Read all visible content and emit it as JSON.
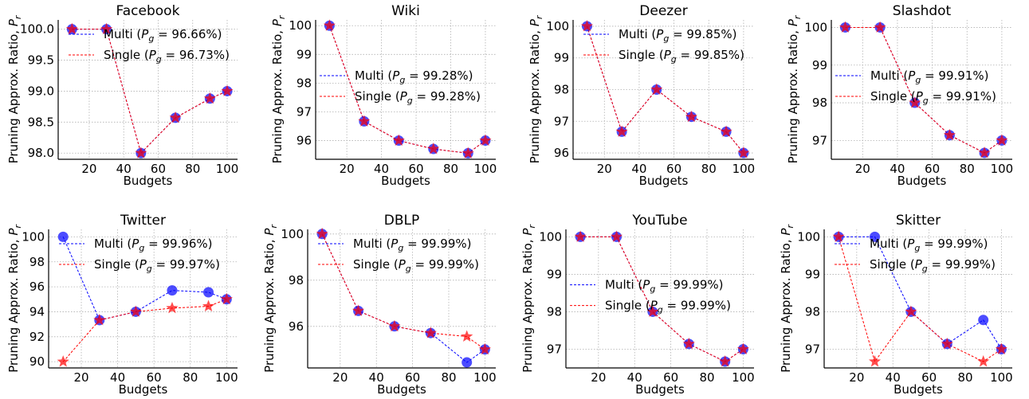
{
  "chart_data": [
    {
      "type": "line",
      "title": "Facebook",
      "xlabel": "Budgets",
      "ylabel": "Pruning Approx. Ratio, P_r",
      "x": [
        10,
        30,
        50,
        70,
        90,
        100
      ],
      "xlim": [
        2,
        106
      ],
      "ylim": [
        97.9,
        100.15
      ],
      "xticks": [
        20,
        40,
        60,
        80,
        100
      ],
      "yticks": [
        98.0,
        98.5,
        99.0,
        99.5,
        100.0
      ],
      "ytick_decimals": 1,
      "legend": "upper-center",
      "series": [
        {
          "name": "Multi",
          "pg": "96.66%",
          "values": [
            100.0,
            100.0,
            98.0,
            98.57,
            98.88,
            99.0
          ],
          "color": "#0000ff"
        },
        {
          "name": "Single",
          "pg": "96.73%",
          "values": [
            100.0,
            100.0,
            98.0,
            98.57,
            98.88,
            99.0
          ],
          "color": "#ff0000"
        }
      ]
    },
    {
      "type": "line",
      "title": "Wiki",
      "xlabel": "Budgets",
      "ylabel": "Pruning Approx. Ratio, P_r",
      "x": [
        10,
        30,
        50,
        70,
        90,
        100
      ],
      "xlim": [
        2,
        106
      ],
      "ylim": [
        95.35,
        100.2
      ],
      "xticks": [
        20,
        40,
        60,
        80,
        100
      ],
      "yticks": [
        96,
        97,
        98,
        99,
        100
      ],
      "ytick_decimals": 0,
      "legend": "center",
      "series": [
        {
          "name": "Multi",
          "pg": "99.28%",
          "values": [
            100.0,
            96.67,
            96.0,
            95.71,
            95.56,
            96.0
          ],
          "color": "#0000ff"
        },
        {
          "name": "Single",
          "pg": "99.28%",
          "values": [
            100.0,
            96.67,
            96.0,
            95.71,
            95.56,
            96.0
          ],
          "color": "#ff0000"
        }
      ]
    },
    {
      "type": "line",
      "title": "Deezer",
      "xlabel": "Budgets",
      "ylabel": "Pruning Approx. Ratio, P_r",
      "x": [
        10,
        30,
        50,
        70,
        90,
        100
      ],
      "xlim": [
        2,
        106
      ],
      "ylim": [
        95.8,
        100.2
      ],
      "xticks": [
        20,
        40,
        60,
        80,
        100
      ],
      "yticks": [
        96,
        97,
        98,
        99,
        100
      ],
      "ytick_decimals": 0,
      "legend": "upper-center",
      "series": [
        {
          "name": "Multi",
          "pg": "99.85%",
          "values": [
            100.0,
            96.67,
            98.0,
            97.14,
            96.67,
            96.0
          ],
          "color": "#0000ff"
        },
        {
          "name": "Single",
          "pg": "99.85%",
          "values": [
            100.0,
            96.67,
            98.0,
            97.14,
            96.67,
            96.0
          ],
          "color": "#ff0000"
        }
      ]
    },
    {
      "type": "line",
      "title": "Slashdot",
      "xlabel": "Budgets",
      "ylabel": "Pruning Approx. Ratio, P_r",
      "x": [
        10,
        30,
        50,
        70,
        90,
        100
      ],
      "xlim": [
        2,
        106
      ],
      "ylim": [
        96.5,
        100.2
      ],
      "xticks": [
        20,
        40,
        60,
        80,
        100
      ],
      "yticks": [
        97,
        98,
        99,
        100
      ],
      "ytick_decimals": 0,
      "legend": "center",
      "series": [
        {
          "name": "Multi",
          "pg": "99.91%",
          "values": [
            100.0,
            100.0,
            98.0,
            97.14,
            96.67,
            97.0
          ],
          "color": "#0000ff"
        },
        {
          "name": "Single",
          "pg": "99.91%",
          "values": [
            100.0,
            100.0,
            98.0,
            97.14,
            96.67,
            97.0
          ],
          "color": "#ff0000"
        }
      ]
    },
    {
      "type": "line",
      "title": "Twitter",
      "xlabel": "Budgets",
      "ylabel": "Pruning Approx. Ratio, P_r",
      "x": [
        10,
        30,
        50,
        70,
        90,
        100
      ],
      "xlim": [
        2,
        106
      ],
      "ylim": [
        89.5,
        100.6
      ],
      "xticks": [
        20,
        40,
        60,
        80,
        100
      ],
      "yticks": [
        90,
        92,
        94,
        96,
        98,
        100
      ],
      "ytick_decimals": 0,
      "legend": "upper-center",
      "series": [
        {
          "name": "Multi",
          "pg": "99.96%",
          "values": [
            100.0,
            93.33,
            94.0,
            95.71,
            95.56,
            95.0
          ],
          "color": "#0000ff"
        },
        {
          "name": "Single",
          "pg": "99.97%",
          "values": [
            90.0,
            93.33,
            94.0,
            94.29,
            94.44,
            95.0
          ],
          "color": "#ff0000"
        }
      ]
    },
    {
      "type": "line",
      "title": "DBLP",
      "xlabel": "Budgets",
      "ylabel": "Pruning Approx. Ratio, P_r",
      "x": [
        10,
        30,
        50,
        70,
        90,
        100
      ],
      "xlim": [
        2,
        106
      ],
      "ylim": [
        94.2,
        100.2
      ],
      "xticks": [
        20,
        40,
        60,
        80,
        100
      ],
      "yticks": [
        96,
        98,
        100
      ],
      "ytick_decimals": 0,
      "legend": "upper-center",
      "series": [
        {
          "name": "Multi",
          "pg": "99.99%",
          "values": [
            100.0,
            96.67,
            96.0,
            95.71,
            94.44,
            95.0
          ],
          "color": "#0000ff"
        },
        {
          "name": "Single",
          "pg": "99.99%",
          "values": [
            100.0,
            96.67,
            96.0,
            95.71,
            95.56,
            95.0
          ],
          "color": "#ff0000"
        }
      ]
    },
    {
      "type": "line",
      "title": "YouTube",
      "xlabel": "Budgets",
      "ylabel": "Pruning Approx. Ratio, P_r",
      "x": [
        10,
        30,
        50,
        70,
        90,
        100
      ],
      "xlim": [
        2,
        106
      ],
      "ylim": [
        96.5,
        100.2
      ],
      "xticks": [
        20,
        40,
        60,
        80,
        100
      ],
      "yticks": [
        97,
        98,
        99,
        100
      ],
      "ytick_decimals": 0,
      "legend": "center",
      "series": [
        {
          "name": "Multi",
          "pg": "99.99%",
          "values": [
            100.0,
            100.0,
            98.0,
            97.14,
            96.67,
            97.0
          ],
          "color": "#0000ff"
        },
        {
          "name": "Single",
          "pg": "99.99%",
          "values": [
            100.0,
            100.0,
            98.0,
            97.14,
            96.67,
            97.0
          ],
          "color": "#ff0000"
        }
      ]
    },
    {
      "type": "line",
      "title": "Skitter",
      "xlabel": "Budgets",
      "ylabel": "Pruning Approx. Ratio, P_r",
      "x": [
        10,
        30,
        50,
        70,
        90,
        100
      ],
      "xlim": [
        2,
        106
      ],
      "ylim": [
        96.5,
        100.2
      ],
      "xticks": [
        20,
        40,
        60,
        80,
        100
      ],
      "yticks": [
        97,
        98,
        99,
        100
      ],
      "ytick_decimals": 0,
      "legend": "upper-center",
      "series": [
        {
          "name": "Multi",
          "pg": "99.99%",
          "values": [
            100.0,
            100.0,
            98.0,
            97.14,
            97.78,
            97.0
          ],
          "color": "#0000ff"
        },
        {
          "name": "Single",
          "pg": "99.99%",
          "values": [
            100.0,
            96.67,
            98.0,
            97.14,
            96.67,
            97.0
          ],
          "color": "#ff0000"
        }
      ]
    }
  ]
}
